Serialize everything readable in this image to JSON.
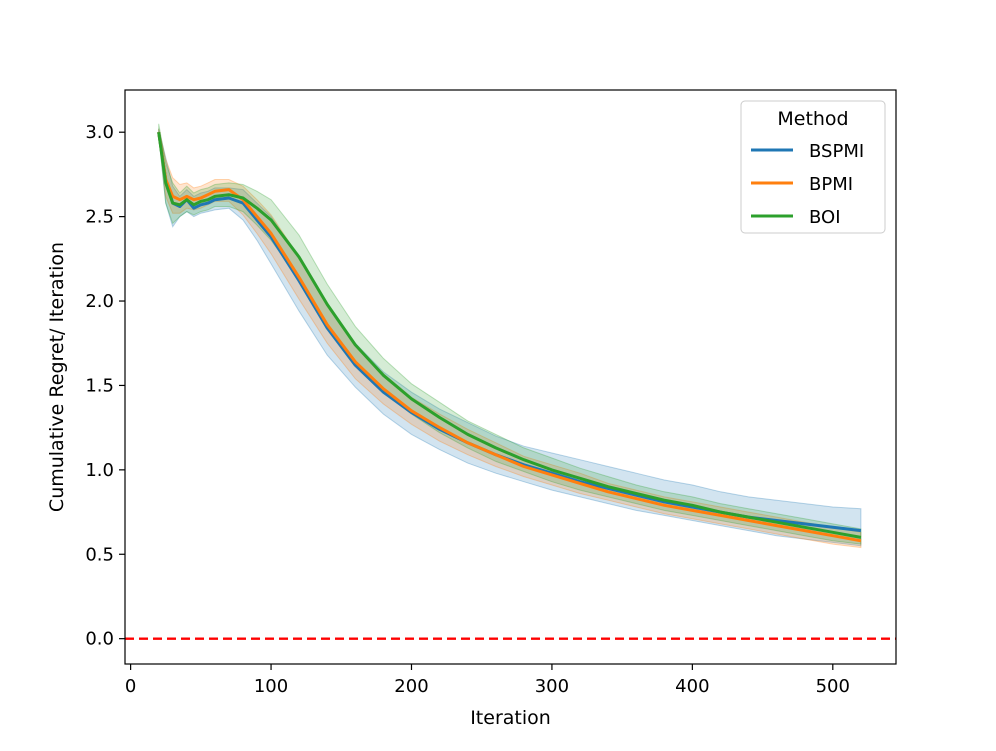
{
  "chart_data": {
    "type": "line",
    "title": "",
    "xlabel": "Iteration",
    "ylabel": "Cumulative Regret/ Iteration",
    "xlim": [
      -4,
      545
    ],
    "ylim": [
      -0.15,
      3.25
    ],
    "xticks": [
      0,
      100,
      200,
      300,
      400,
      500
    ],
    "yticks": [
      0.0,
      0.5,
      1.0,
      1.5,
      2.0,
      2.5,
      3.0
    ],
    "xtick_labels": [
      "0",
      "100",
      "200",
      "300",
      "400",
      "500"
    ],
    "ytick_labels": [
      "0.0",
      "0.5",
      "1.0",
      "1.5",
      "2.0",
      "2.5",
      "3.0"
    ],
    "legend": {
      "title": "Method",
      "placement": "top-right"
    },
    "reference_line": {
      "y": 0.0,
      "style": "dashed",
      "color": "#ff0000"
    },
    "series": [
      {
        "name": "BSPMI",
        "color": "#1f77b4",
        "x": [
          20,
          25,
          30,
          35,
          40,
          45,
          50,
          55,
          60,
          70,
          80,
          90,
          100,
          120,
          140,
          160,
          180,
          200,
          220,
          240,
          260,
          280,
          300,
          320,
          340,
          360,
          380,
          400,
          420,
          440,
          460,
          480,
          500,
          520
        ],
        "mean": [
          3.0,
          2.72,
          2.58,
          2.56,
          2.6,
          2.55,
          2.57,
          2.58,
          2.6,
          2.61,
          2.58,
          2.48,
          2.38,
          2.12,
          1.84,
          1.62,
          1.46,
          1.34,
          1.24,
          1.16,
          1.09,
          1.03,
          0.98,
          0.93,
          0.89,
          0.85,
          0.81,
          0.78,
          0.75,
          0.72,
          0.7,
          0.68,
          0.66,
          0.64
        ],
        "lower": [
          2.98,
          2.58,
          2.44,
          2.5,
          2.53,
          2.5,
          2.52,
          2.53,
          2.54,
          2.55,
          2.48,
          2.36,
          2.22,
          1.94,
          1.68,
          1.49,
          1.33,
          1.21,
          1.12,
          1.04,
          0.98,
          0.93,
          0.88,
          0.84,
          0.8,
          0.76,
          0.73,
          0.7,
          0.67,
          0.64,
          0.61,
          0.59,
          0.57,
          0.55
        ],
        "upper": [
          3.02,
          2.85,
          2.68,
          2.62,
          2.66,
          2.62,
          2.64,
          2.65,
          2.67,
          2.67,
          2.66,
          2.58,
          2.5,
          2.25,
          1.98,
          1.75,
          1.58,
          1.46,
          1.36,
          1.28,
          1.2,
          1.14,
          1.1,
          1.06,
          1.02,
          0.98,
          0.94,
          0.91,
          0.87,
          0.84,
          0.82,
          0.8,
          0.78,
          0.77
        ]
      },
      {
        "name": "BPMI",
        "color": "#ff7f0e",
        "x": [
          20,
          25,
          30,
          35,
          40,
          45,
          50,
          55,
          60,
          70,
          80,
          90,
          100,
          120,
          140,
          160,
          180,
          200,
          220,
          240,
          260,
          280,
          300,
          320,
          340,
          360,
          380,
          400,
          420,
          440,
          460,
          480,
          500,
          520
        ],
        "mean": [
          3.0,
          2.72,
          2.62,
          2.6,
          2.62,
          2.6,
          2.61,
          2.63,
          2.65,
          2.66,
          2.6,
          2.5,
          2.4,
          2.14,
          1.86,
          1.64,
          1.48,
          1.35,
          1.25,
          1.16,
          1.09,
          1.02,
          0.97,
          0.92,
          0.87,
          0.83,
          0.79,
          0.76,
          0.73,
          0.7,
          0.67,
          0.64,
          0.61,
          0.58
        ],
        "lower": [
          2.98,
          2.62,
          2.52,
          2.52,
          2.55,
          2.54,
          2.55,
          2.57,
          2.59,
          2.59,
          2.51,
          2.4,
          2.28,
          2.01,
          1.75,
          1.54,
          1.39,
          1.27,
          1.17,
          1.09,
          1.02,
          0.96,
          0.91,
          0.86,
          0.82,
          0.78,
          0.74,
          0.71,
          0.68,
          0.65,
          0.62,
          0.59,
          0.56,
          0.54
        ],
        "upper": [
          3.02,
          2.84,
          2.73,
          2.69,
          2.7,
          2.67,
          2.68,
          2.7,
          2.72,
          2.72,
          2.68,
          2.6,
          2.51,
          2.26,
          1.97,
          1.74,
          1.57,
          1.43,
          1.33,
          1.24,
          1.16,
          1.08,
          1.03,
          0.98,
          0.92,
          0.88,
          0.84,
          0.81,
          0.78,
          0.75,
          0.72,
          0.69,
          0.66,
          0.63
        ]
      },
      {
        "name": "BOI",
        "color": "#2ca02c",
        "x": [
          20,
          25,
          30,
          35,
          40,
          45,
          50,
          55,
          60,
          70,
          80,
          90,
          100,
          120,
          140,
          160,
          180,
          200,
          220,
          240,
          260,
          280,
          300,
          320,
          340,
          360,
          380,
          400,
          420,
          440,
          460,
          480,
          500,
          520
        ],
        "mean": [
          3.0,
          2.7,
          2.58,
          2.57,
          2.6,
          2.57,
          2.59,
          2.6,
          2.62,
          2.63,
          2.61,
          2.55,
          2.48,
          2.26,
          1.98,
          1.74,
          1.56,
          1.42,
          1.31,
          1.21,
          1.13,
          1.06,
          1.0,
          0.95,
          0.9,
          0.86,
          0.82,
          0.79,
          0.75,
          0.72,
          0.69,
          0.66,
          0.63,
          0.6
        ],
        "lower": [
          2.98,
          2.58,
          2.46,
          2.5,
          2.53,
          2.51,
          2.53,
          2.54,
          2.56,
          2.56,
          2.53,
          2.45,
          2.36,
          2.13,
          1.86,
          1.63,
          1.46,
          1.33,
          1.22,
          1.13,
          1.05,
          0.99,
          0.93,
          0.88,
          0.84,
          0.8,
          0.76,
          0.73,
          0.7,
          0.67,
          0.64,
          0.61,
          0.58,
          0.56
        ],
        "upper": [
          3.05,
          2.82,
          2.7,
          2.64,
          2.68,
          2.64,
          2.66,
          2.67,
          2.69,
          2.7,
          2.69,
          2.65,
          2.6,
          2.39,
          2.1,
          1.85,
          1.66,
          1.51,
          1.4,
          1.29,
          1.21,
          1.13,
          1.07,
          1.01,
          0.96,
          0.91,
          0.87,
          0.84,
          0.8,
          0.77,
          0.74,
          0.71,
          0.68,
          0.65
        ]
      }
    ]
  }
}
